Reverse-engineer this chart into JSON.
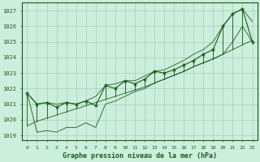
{
  "title": "Graphe pression niveau de la mer (hPa)",
  "x_values": [
    0,
    1,
    2,
    3,
    4,
    5,
    6,
    7,
    8,
    9,
    10,
    11,
    12,
    13,
    14,
    15,
    16,
    17,
    18,
    19,
    20,
    21,
    22,
    23
  ],
  "y_main": [
    1021.7,
    1021.0,
    1021.1,
    1020.8,
    1021.1,
    1021.0,
    1021.2,
    1020.9,
    1022.2,
    1022.0,
    1022.5,
    1022.3,
    1022.6,
    1023.1,
    1023.0,
    1023.2,
    1023.5,
    1023.8,
    1024.2,
    1024.5,
    1026.0,
    1026.8,
    1027.1,
    1025.0
  ],
  "y_trend": [
    1019.6,
    1019.9,
    1020.1,
    1020.3,
    1020.5,
    1020.7,
    1020.9,
    1021.1,
    1021.3,
    1021.5,
    1021.7,
    1021.9,
    1022.1,
    1022.35,
    1022.6,
    1022.85,
    1023.1,
    1023.4,
    1023.65,
    1023.9,
    1024.2,
    1024.5,
    1024.8,
    1025.1
  ],
  "y_upper": [
    1021.7,
    1021.0,
    1021.1,
    1021.0,
    1021.1,
    1021.0,
    1021.2,
    1021.5,
    1022.2,
    1022.3,
    1022.5,
    1022.5,
    1022.8,
    1023.1,
    1023.2,
    1023.5,
    1023.8,
    1024.2,
    1024.5,
    1025.0,
    1026.0,
    1026.8,
    1027.1,
    1026.3
  ],
  "y_lower": [
    1021.7,
    1019.2,
    1019.3,
    1019.2,
    1019.5,
    1019.5,
    1019.8,
    1019.5,
    1021.0,
    1021.2,
    1021.5,
    1021.8,
    1022.0,
    1022.35,
    1022.6,
    1022.85,
    1023.1,
    1023.4,
    1023.65,
    1023.9,
    1024.2,
    1025.0,
    1026.0,
    1025.0
  ],
  "bg_color": "#cceedd",
  "grid_color": "#aaccbb",
  "line_color": "#1a5c1a",
  "text_color": "#1a5c1a",
  "ylim": [
    1018.7,
    1027.5
  ],
  "yticks": [
    1019,
    1020,
    1021,
    1022,
    1023,
    1024,
    1025,
    1026,
    1027
  ],
  "xlim": [
    -0.5,
    23.5
  ],
  "xticks": [
    0,
    1,
    2,
    3,
    4,
    5,
    6,
    7,
    8,
    9,
    10,
    11,
    12,
    13,
    14,
    15,
    16,
    17,
    18,
    19,
    20,
    21,
    22,
    23
  ]
}
